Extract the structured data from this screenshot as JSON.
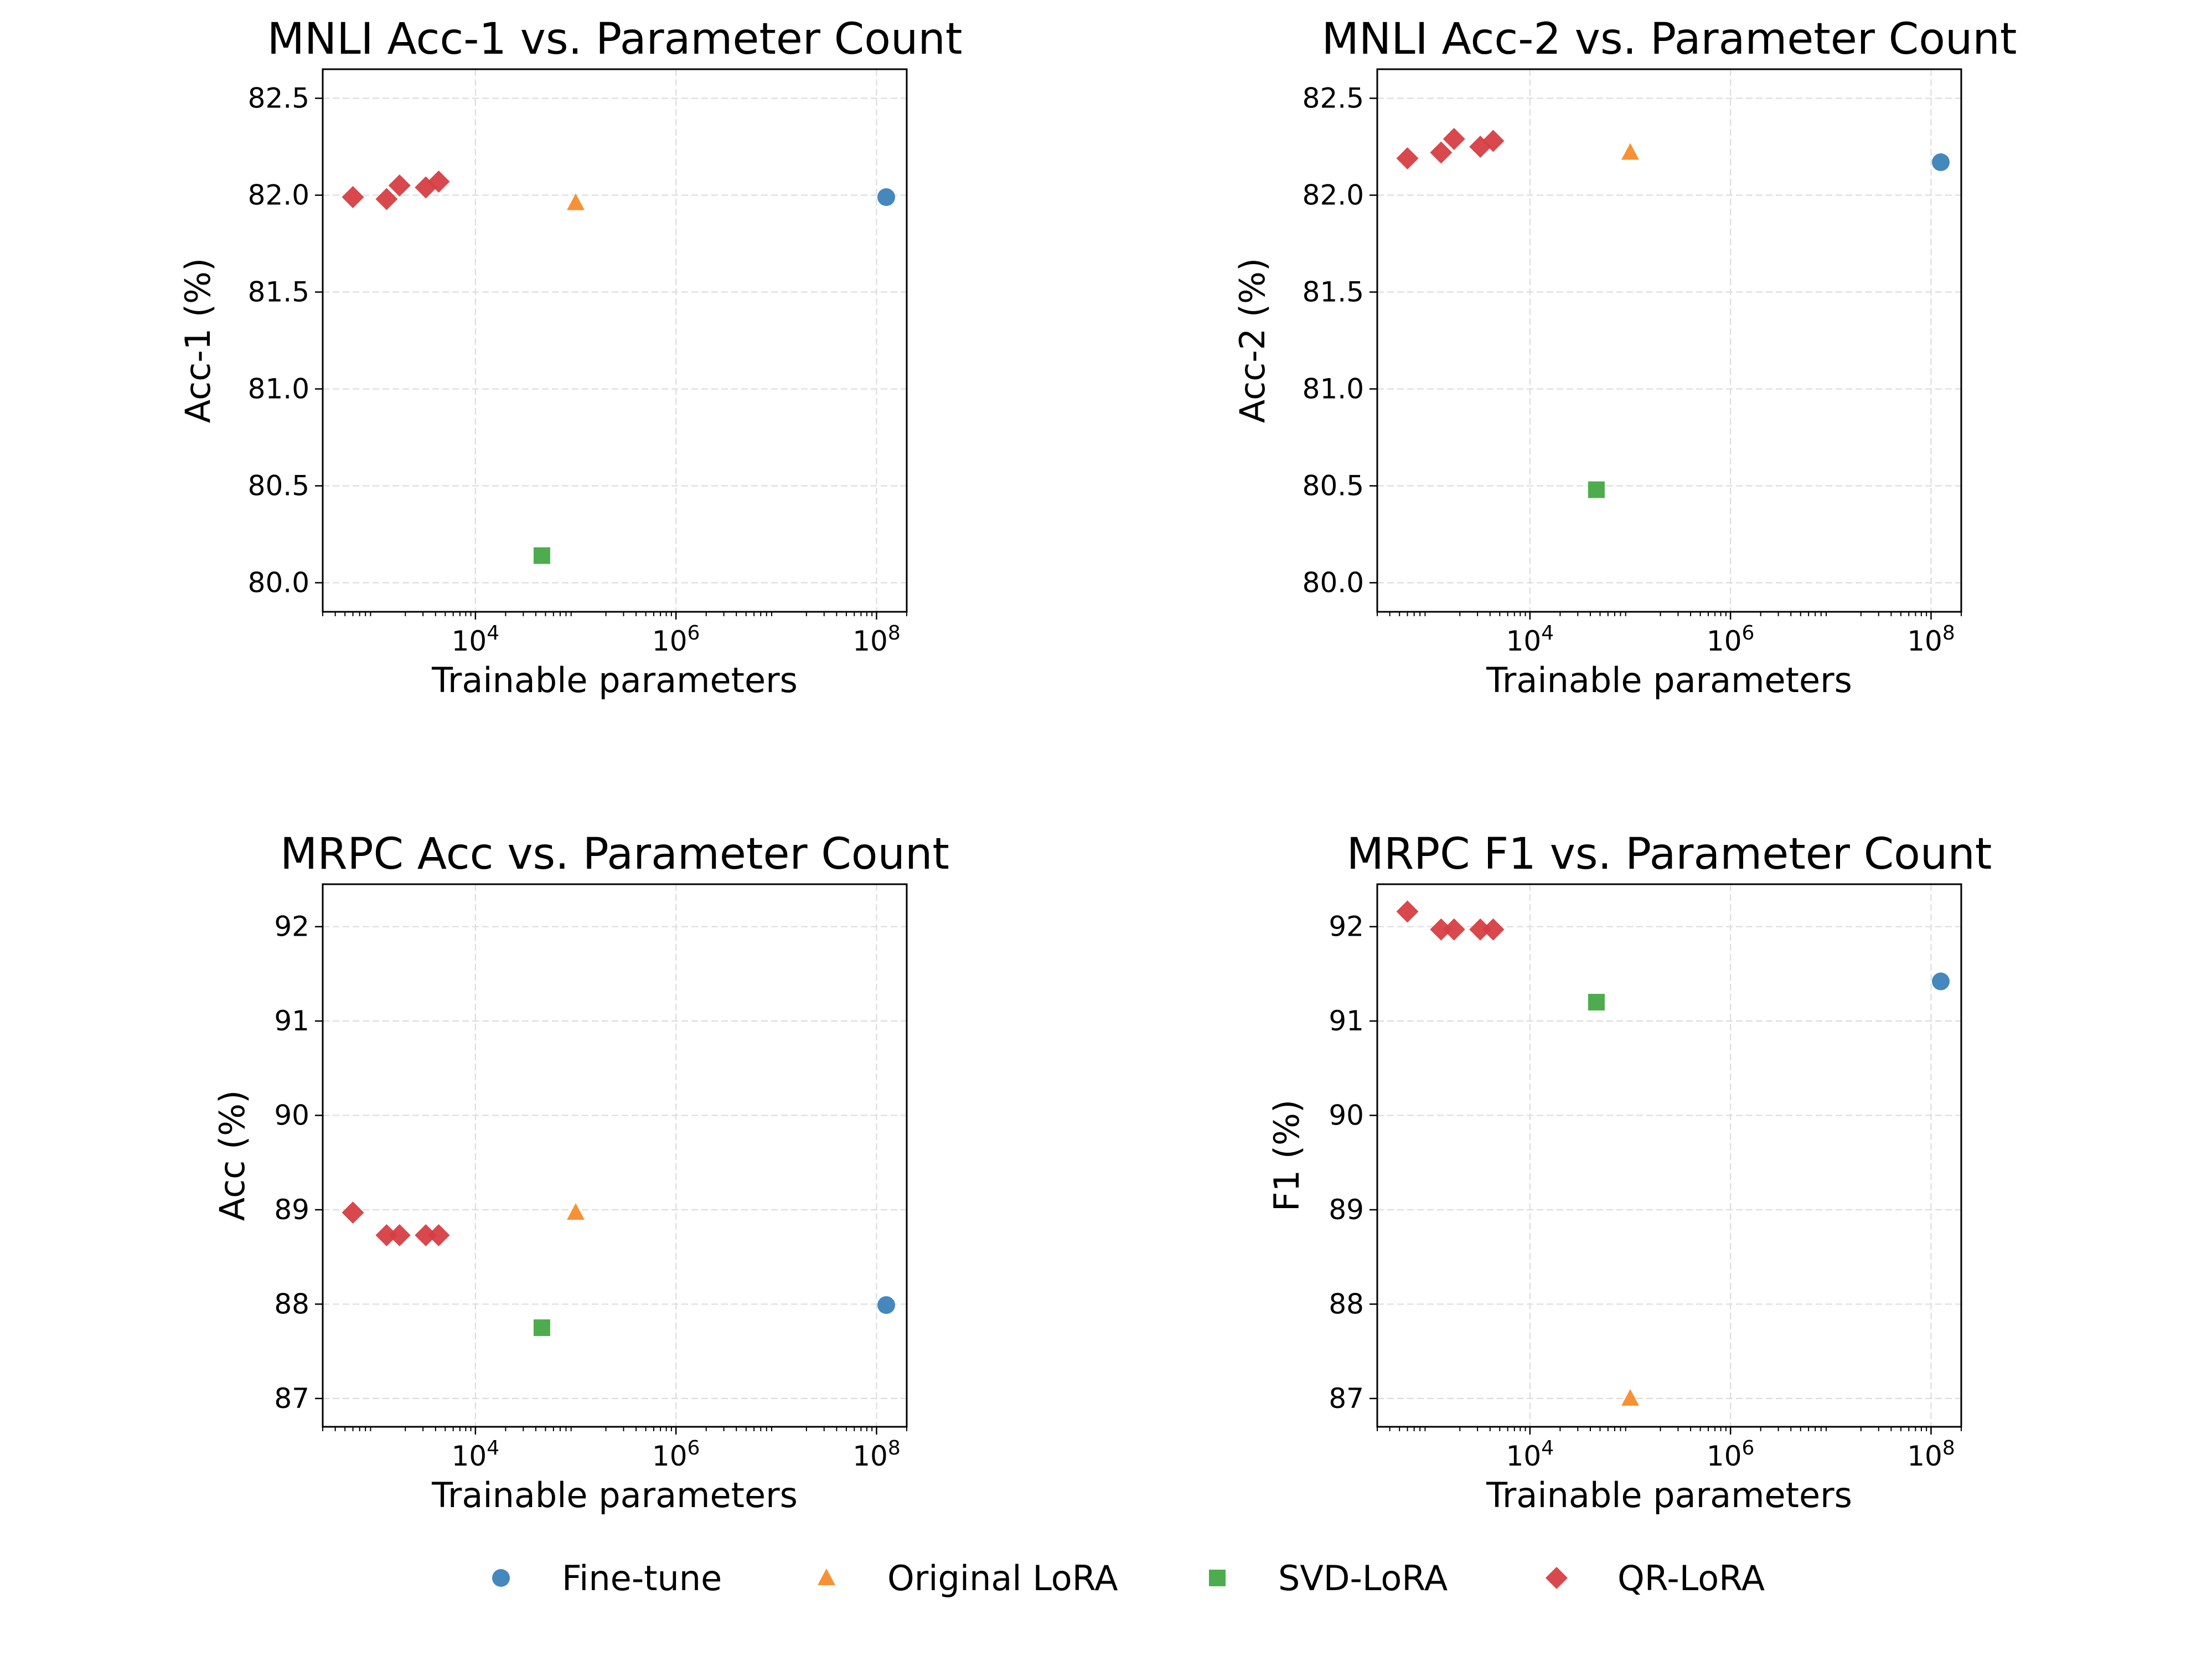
{
  "legend": {
    "placement": "bottom-center",
    "entries": [
      {
        "label": "Fine-tune",
        "marker": "circle",
        "color": "#3a82bb"
      },
      {
        "label": "Original LoRA",
        "marker": "triangle",
        "color": "#f58b2a"
      },
      {
        "label": "SVD-LoRA",
        "marker": "square",
        "color": "#43a843"
      },
      {
        "label": "QR-LoRA",
        "marker": "diamond",
        "color": "#d63e43"
      }
    ]
  },
  "chart_data": [
    {
      "type": "scatter",
      "title": "MNLI Acc-1 vs. Parameter Count",
      "xlabel": "Trainable parameters",
      "ylabel": "Acc-1 (%)",
      "xscale": "log",
      "xlim": [
        300,
        200000000
      ],
      "ylim": [
        79.85,
        82.65
      ],
      "xticks": [
        10000,
        1000000,
        100000000
      ],
      "xtick_labels": [
        {
          "base": "10",
          "exp": "4"
        },
        {
          "base": "10",
          "exp": "6"
        },
        {
          "base": "10",
          "exp": "8"
        }
      ],
      "yticks": [
        "80.0",
        "80.5",
        "81.0",
        "81.5",
        "82.0",
        "82.5"
      ],
      "grid": true,
      "series": [
        {
          "name": "Fine-tune",
          "points": [
            {
              "x": 125000000,
              "y": 81.99
            }
          ]
        },
        {
          "name": "Original LoRA",
          "points": [
            {
              "x": 100000,
              "y": 81.96
            }
          ]
        },
        {
          "name": "SVD-LoRA",
          "points": [
            {
              "x": 46000,
              "y": 80.14
            }
          ]
        },
        {
          "name": "QR-LoRA",
          "points": [
            {
              "x": 600,
              "y": 81.99
            },
            {
              "x": 1300,
              "y": 81.98
            },
            {
              "x": 1750,
              "y": 82.05
            },
            {
              "x": 3200,
              "y": 82.04
            },
            {
              "x": 4300,
              "y": 82.07
            }
          ]
        }
      ]
    },
    {
      "type": "scatter",
      "title": "MNLI Acc-2 vs. Parameter Count",
      "xlabel": "Trainable parameters",
      "ylabel": "Acc-2 (%)",
      "xscale": "log",
      "xlim": [
        300,
        200000000
      ],
      "ylim": [
        79.85,
        82.65
      ],
      "xticks": [
        10000,
        1000000,
        100000000
      ],
      "xtick_labels": [
        {
          "base": "10",
          "exp": "4"
        },
        {
          "base": "10",
          "exp": "6"
        },
        {
          "base": "10",
          "exp": "8"
        }
      ],
      "yticks": [
        "80.0",
        "80.5",
        "81.0",
        "81.5",
        "82.0",
        "82.5"
      ],
      "grid": true,
      "series": [
        {
          "name": "Fine-tune",
          "points": [
            {
              "x": 125000000,
              "y": 82.17
            }
          ]
        },
        {
          "name": "Original LoRA",
          "points": [
            {
              "x": 100000,
              "y": 82.22
            }
          ]
        },
        {
          "name": "SVD-LoRA",
          "points": [
            {
              "x": 46000,
              "y": 80.48
            }
          ]
        },
        {
          "name": "QR-LoRA",
          "points": [
            {
              "x": 600,
              "y": 82.19
            },
            {
              "x": 1300,
              "y": 82.22
            },
            {
              "x": 1750,
              "y": 82.29
            },
            {
              "x": 3200,
              "y": 82.25
            },
            {
              "x": 4300,
              "y": 82.28
            }
          ]
        }
      ]
    },
    {
      "type": "scatter",
      "title": "MRPC Acc vs. Parameter Count",
      "xlabel": "Trainable parameters",
      "ylabel": "Acc (%)",
      "xscale": "log",
      "xlim": [
        300,
        200000000
      ],
      "ylim": [
        86.7,
        92.45
      ],
      "xticks": [
        10000,
        1000000,
        100000000
      ],
      "xtick_labels": [
        {
          "base": "10",
          "exp": "4"
        },
        {
          "base": "10",
          "exp": "6"
        },
        {
          "base": "10",
          "exp": "8"
        }
      ],
      "yticks": [
        "87",
        "88",
        "89",
        "90",
        "91",
        "92"
      ],
      "grid": true,
      "series": [
        {
          "name": "Fine-tune",
          "points": [
            {
              "x": 125000000,
              "y": 87.99
            }
          ]
        },
        {
          "name": "Original LoRA",
          "points": [
            {
              "x": 100000,
              "y": 88.97
            }
          ]
        },
        {
          "name": "SVD-LoRA",
          "points": [
            {
              "x": 46000,
              "y": 87.75
            }
          ]
        },
        {
          "name": "QR-LoRA",
          "points": [
            {
              "x": 600,
              "y": 88.97
            },
            {
              "x": 1300,
              "y": 88.73
            },
            {
              "x": 1750,
              "y": 88.73
            },
            {
              "x": 3200,
              "y": 88.73
            },
            {
              "x": 4300,
              "y": 88.73
            }
          ]
        }
      ]
    },
    {
      "type": "scatter",
      "title": "MRPC F1 vs. Parameter Count",
      "xlabel": "Trainable parameters",
      "ylabel": "F1 (%)",
      "xscale": "log",
      "xlim": [
        300,
        200000000
      ],
      "ylim": [
        86.7,
        92.45
      ],
      "xticks": [
        10000,
        1000000,
        100000000
      ],
      "xtick_labels": [
        {
          "base": "10",
          "exp": "4"
        },
        {
          "base": "10",
          "exp": "6"
        },
        {
          "base": "10",
          "exp": "8"
        }
      ],
      "yticks": [
        "87",
        "88",
        "89",
        "90",
        "91",
        "92"
      ],
      "grid": true,
      "series": [
        {
          "name": "Fine-tune",
          "points": [
            {
              "x": 125000000,
              "y": 91.42
            }
          ]
        },
        {
          "name": "Original LoRA",
          "points": [
            {
              "x": 100000,
              "y": 87.0
            }
          ]
        },
        {
          "name": "SVD-LoRA",
          "points": [
            {
              "x": 46000,
              "y": 91.2
            }
          ]
        },
        {
          "name": "QR-LoRA",
          "points": [
            {
              "x": 600,
              "y": 92.16
            },
            {
              "x": 1300,
              "y": 91.97
            },
            {
              "x": 1750,
              "y": 91.97
            },
            {
              "x": 3200,
              "y": 91.97
            },
            {
              "x": 4300,
              "y": 91.97
            }
          ]
        }
      ]
    }
  ]
}
